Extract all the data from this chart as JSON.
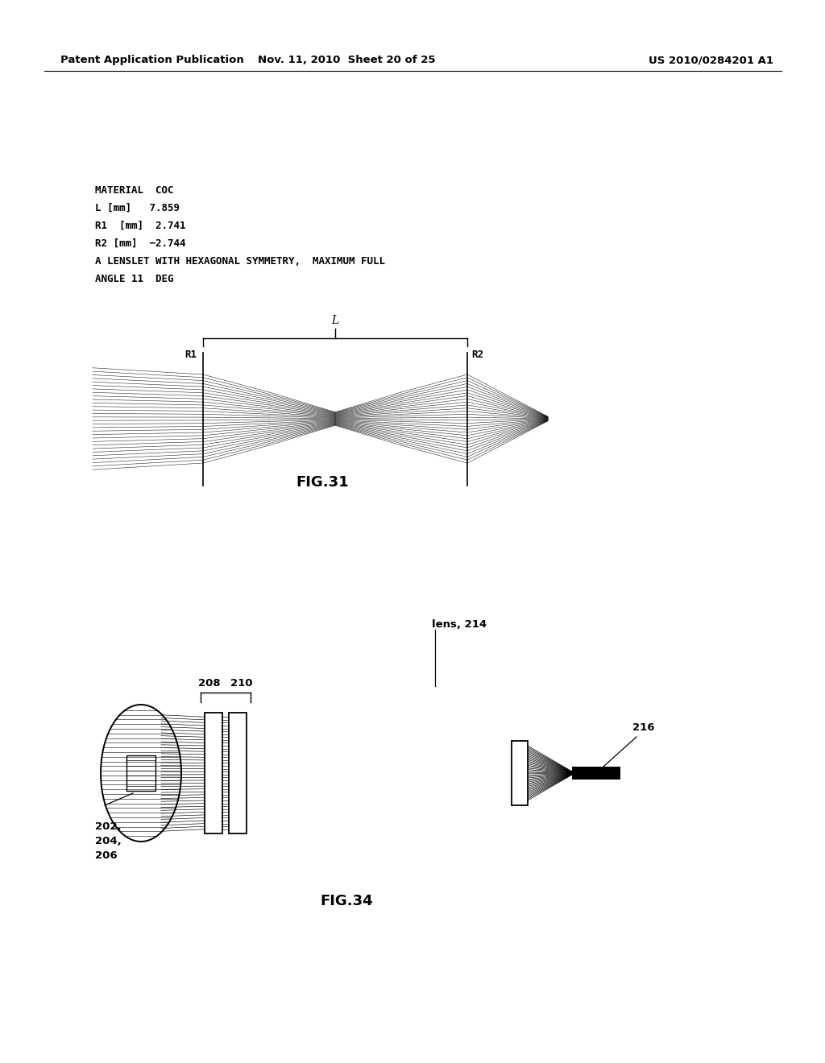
{
  "bg_color": "#ffffff",
  "header_left": "Patent Application Publication",
  "header_mid": "Nov. 11, 2010  Sheet 20 of 25",
  "header_right": "US 2010/0284201 A1",
  "spec_lines": [
    "MATERIAL  COC",
    "L [mm]   7.859",
    "R1  [mm]  2.741",
    "R2 [mm]  −2.744",
    "A LENSLET WITH HEXAGONAL SYMMETRY,  MAXIMUM FULL",
    "ANGLE 11  DEG"
  ],
  "fig31_label": "FIG.31",
  "fig34_label": "FIG.34"
}
